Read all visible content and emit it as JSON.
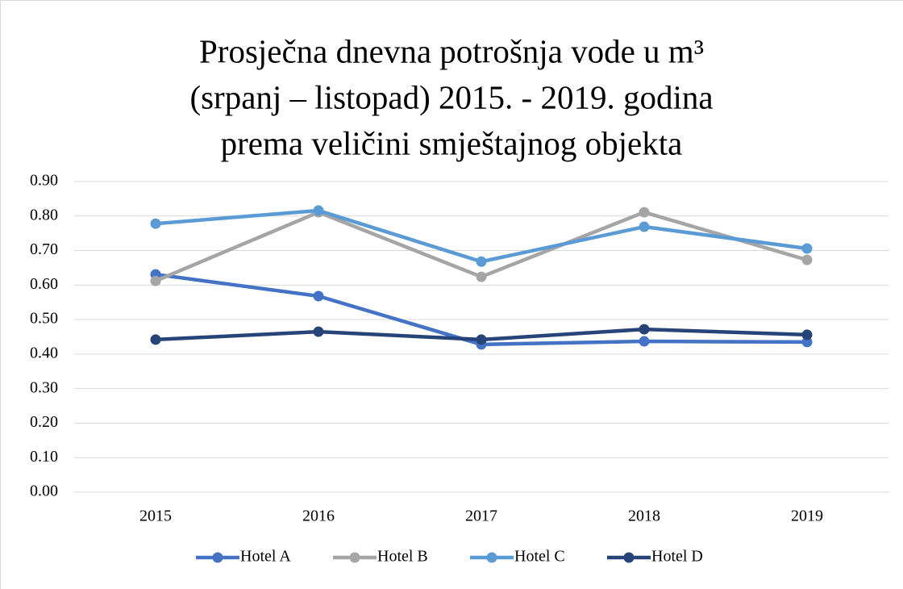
{
  "chart_data": {
    "type": "line",
    "title": [
      "Prosječna dnevna potrošnja vode u m³",
      "(srpanj – listopad) 2015. - 2019. godina",
      "prema veličini smještajnog objekta"
    ],
    "categories": [
      "2015",
      "2016",
      "2017",
      "2018",
      "2019"
    ],
    "series": [
      {
        "name": "Hotel A",
        "color": "#4472c4",
        "values": [
          0.631,
          0.568,
          0.428,
          0.437,
          0.435
        ]
      },
      {
        "name": "Hotel B",
        "color": "#a5a5a5",
        "values": [
          0.612,
          0.811,
          0.624,
          0.811,
          0.673
        ]
      },
      {
        "name": "Hotel C",
        "color": "#5b9bd5",
        "values": [
          0.778,
          0.816,
          0.668,
          0.769,
          0.706
        ]
      },
      {
        "name": "Hotel D",
        "color": "#264478",
        "values": [
          0.442,
          0.465,
          0.442,
          0.472,
          0.456
        ]
      }
    ],
    "ylim": [
      0,
      0.9
    ],
    "yticks": [
      {
        "value": 0,
        "label": "0.00"
      },
      {
        "value": 0.1,
        "label": "0.10"
      },
      {
        "value": 0.2,
        "label": "0.20"
      },
      {
        "value": 0.3,
        "label": "0.30"
      },
      {
        "value": 0.4,
        "label": "0.40"
      },
      {
        "value": 0.5,
        "label": "0.50"
      },
      {
        "value": 0.6,
        "label": "0.60"
      },
      {
        "value": 0.7,
        "label": "0.70"
      },
      {
        "value": 0.8,
        "label": "0.80"
      },
      {
        "value": 0.9,
        "label": "0.90"
      }
    ],
    "grid": true,
    "legend": "bottom"
  }
}
